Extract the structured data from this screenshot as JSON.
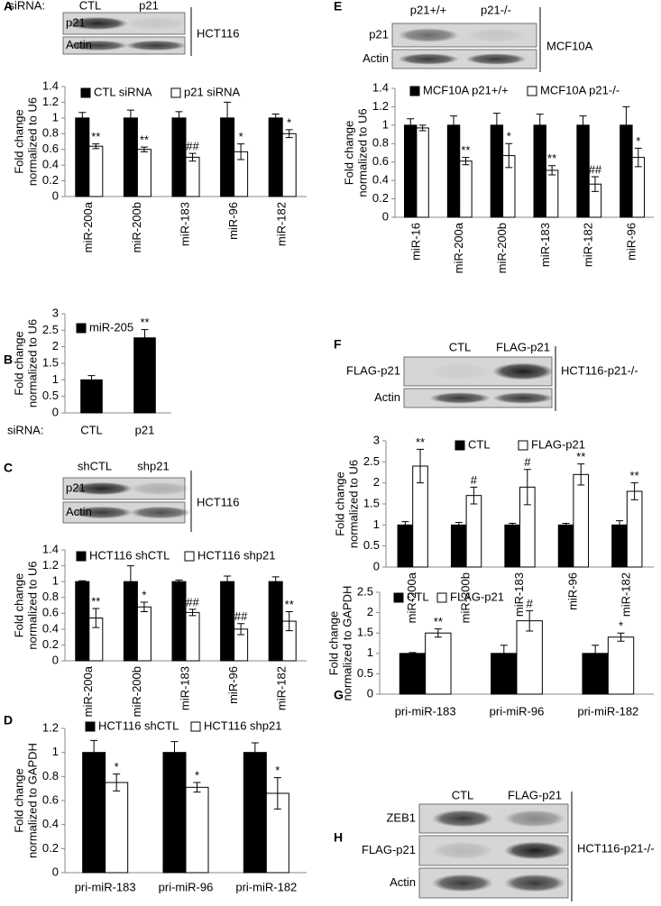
{
  "panel_labels": [
    "A",
    "B",
    "C",
    "D",
    "E",
    "F",
    "G",
    "H"
  ],
  "blots": [
    {
      "prefix": "siRNA:",
      "lanes": [
        "CTL",
        "p21"
      ],
      "rows": [
        "p21",
        "Actin"
      ],
      "cell_line": "HCT116"
    },
    {
      "lanes": [
        "shCTL",
        "shp21"
      ],
      "rows": [
        "p21",
        "Actin"
      ],
      "cell_line": "HCT116"
    },
    {
      "lanes": [
        "p21+/+",
        "p21-/-"
      ],
      "rows": [
        "p21",
        "Actin"
      ],
      "cell_line": "MCF10A"
    },
    {
      "lanes": [
        "CTL",
        "FLAG-p21"
      ],
      "rows": [
        "FLAG-p21",
        "Actin"
      ],
      "cell_line": "HCT116-p21-/-"
    },
    {
      "lanes": [
        "CTL",
        "FLAG-p21"
      ],
      "rows": [
        "ZEB1",
        "FLAG-p21",
        "Actin"
      ],
      "cell_line": "HCT116-p21-/-"
    }
  ],
  "chart_data": [
    {
      "type": "bar",
      "ylabel": [
        "Fold change",
        "normalized to U6"
      ],
      "categories": [
        "miR-200a",
        "miR-200b",
        "miR-183",
        "miR-96",
        "miR-182"
      ],
      "series": [
        {
          "name": "CTL siRNA",
          "color": "#000000",
          "values": [
            1,
            1,
            1,
            1,
            1
          ],
          "errors": [
            0.07,
            0.1,
            0.08,
            0.2,
            0.05
          ]
        },
        {
          "name": "p21 siRNA",
          "color": "#ffffff",
          "values": [
            0.64,
            0.6,
            0.5,
            0.57,
            0.8
          ],
          "errors": [
            0.03,
            0.03,
            0.05,
            0.1,
            0.05
          ],
          "annotations": [
            "**",
            "**",
            "##",
            "*",
            "*"
          ]
        }
      ],
      "ylim": [
        0,
        1.4
      ],
      "yticks": [
        0,
        0.2,
        0.4,
        0.6,
        0.8,
        1,
        1.2,
        1.4
      ]
    },
    {
      "type": "bar",
      "ylabel": [
        "Fold change",
        "normalized to U6"
      ],
      "xlabel": "siRNA:",
      "categories": [
        "CTL",
        "p21"
      ],
      "series": [
        {
          "name": "miR-205",
          "color": "#000000",
          "values": [
            1,
            2.27
          ],
          "errors": [
            0.13,
            0.25
          ],
          "annotations": [
            null,
            "**"
          ]
        }
      ],
      "ylim": [
        0,
        3
      ],
      "yticks": [
        0,
        0.5,
        1,
        1.5,
        2,
        2.5,
        3
      ]
    },
    {
      "type": "bar",
      "ylabel": [
        "Fold change",
        "normalized to U6"
      ],
      "categories": [
        "miR-200a",
        "miR-200b",
        "miR-183",
        "miR-96",
        "miR-182"
      ],
      "series": [
        {
          "name": "HCT116 shCTL",
          "color": "#000000",
          "values": [
            1,
            1,
            1,
            1,
            1
          ],
          "errors": [
            0.01,
            0.2,
            0.02,
            0.07,
            0.06
          ]
        },
        {
          "name": "HCT116 shp21",
          "color": "#ffffff",
          "values": [
            0.54,
            0.68,
            0.61,
            0.4,
            0.5
          ],
          "errors": [
            0.12,
            0.06,
            0.04,
            0.07,
            0.12
          ],
          "annotations": [
            "**",
            "*",
            "##",
            "##",
            "**"
          ]
        }
      ],
      "ylim": [
        0,
        1.4
      ],
      "yticks": [
        0,
        0.2,
        0.4,
        0.6,
        0.8,
        1,
        1.2,
        1.4
      ]
    },
    {
      "type": "bar",
      "ylabel": [
        "Fold change",
        "normalized to GAPDH"
      ],
      "categories": [
        "pri-miR-183",
        "pri-miR-96",
        "pri-miR-182"
      ],
      "series": [
        {
          "name": "HCT116 shCTL",
          "color": "#000000",
          "values": [
            1,
            1,
            1
          ],
          "errors": [
            0.1,
            0.09,
            0.08
          ]
        },
        {
          "name": "HCT116 shp21",
          "color": "#ffffff",
          "values": [
            0.75,
            0.71,
            0.66
          ],
          "errors": [
            0.07,
            0.04,
            0.13
          ],
          "annotations": [
            "*",
            "*",
            "*"
          ]
        }
      ],
      "ylim": [
        0,
        1.2
      ],
      "yticks": [
        0,
        0.2,
        0.4,
        0.6,
        0.8,
        1,
        1.2
      ]
    },
    {
      "type": "bar",
      "ylabel": [
        "Fold change",
        "normalized to U6"
      ],
      "categories": [
        "miR-16",
        "miR-200a",
        "miR-200b",
        "miR-183",
        "miR-182",
        "miR-96"
      ],
      "series": [
        {
          "name": "MCF10A p21+/+",
          "color": "#000000",
          "values": [
            1,
            1,
            1,
            1,
            1,
            1
          ],
          "errors": [
            0.07,
            0.1,
            0.13,
            0.12,
            0.1,
            0.2
          ]
        },
        {
          "name": "MCF10A p21-/-",
          "color": "#ffffff",
          "values": [
            0.97,
            0.61,
            0.67,
            0.51,
            0.36,
            0.65
          ],
          "errors": [
            0.03,
            0.04,
            0.13,
            0.05,
            0.08,
            0.1
          ],
          "annotations": [
            null,
            "**",
            "*",
            "**",
            "##",
            "*"
          ]
        }
      ],
      "ylim": [
        0,
        1.4
      ],
      "yticks": [
        0,
        0.2,
        0.4,
        0.6,
        0.8,
        1,
        1.2,
        1.4
      ]
    },
    {
      "type": "bar",
      "ylabel": [
        "Fold change",
        "normalized to U6"
      ],
      "categories": [
        "miR-200a",
        "miR-200b",
        "miR-183",
        "miR-96",
        "miR-182"
      ],
      "series": [
        {
          "name": "CTL",
          "color": "#000000",
          "values": [
            1,
            1,
            1,
            1,
            1
          ],
          "errors": [
            0.08,
            0.06,
            0.04,
            0.04,
            0.1
          ]
        },
        {
          "name": "FLAG-p21",
          "color": "#ffffff",
          "values": [
            2.4,
            1.7,
            1.9,
            2.2,
            1.8
          ],
          "errors": [
            0.4,
            0.2,
            0.42,
            0.25,
            0.2
          ],
          "annotations": [
            "**",
            "#",
            "#",
            "**",
            "**"
          ]
        }
      ],
      "ylim": [
        0,
        3
      ],
      "yticks": [
        0,
        0.5,
        1,
        1.5,
        2,
        2.5,
        3
      ]
    },
    {
      "type": "bar",
      "ylabel": [
        "Fold change",
        "normalized to GAPDH"
      ],
      "categories": [
        "pri-miR-183",
        "pri-miR-96",
        "pri-miR-182"
      ],
      "series": [
        {
          "name": "CTL",
          "color": "#000000",
          "values": [
            1,
            1,
            1
          ],
          "errors": [
            0.02,
            0.2,
            0.2
          ]
        },
        {
          "name": "FLAG-p21",
          "color": "#ffffff",
          "values": [
            1.5,
            1.8,
            1.4
          ],
          "errors": [
            0.1,
            0.25,
            0.1
          ],
          "annotations": [
            "**",
            "#",
            "*"
          ]
        }
      ],
      "ylim": [
        0,
        2.5
      ],
      "yticks": [
        0,
        0.5,
        1,
        1.5,
        2,
        2.5
      ]
    }
  ]
}
